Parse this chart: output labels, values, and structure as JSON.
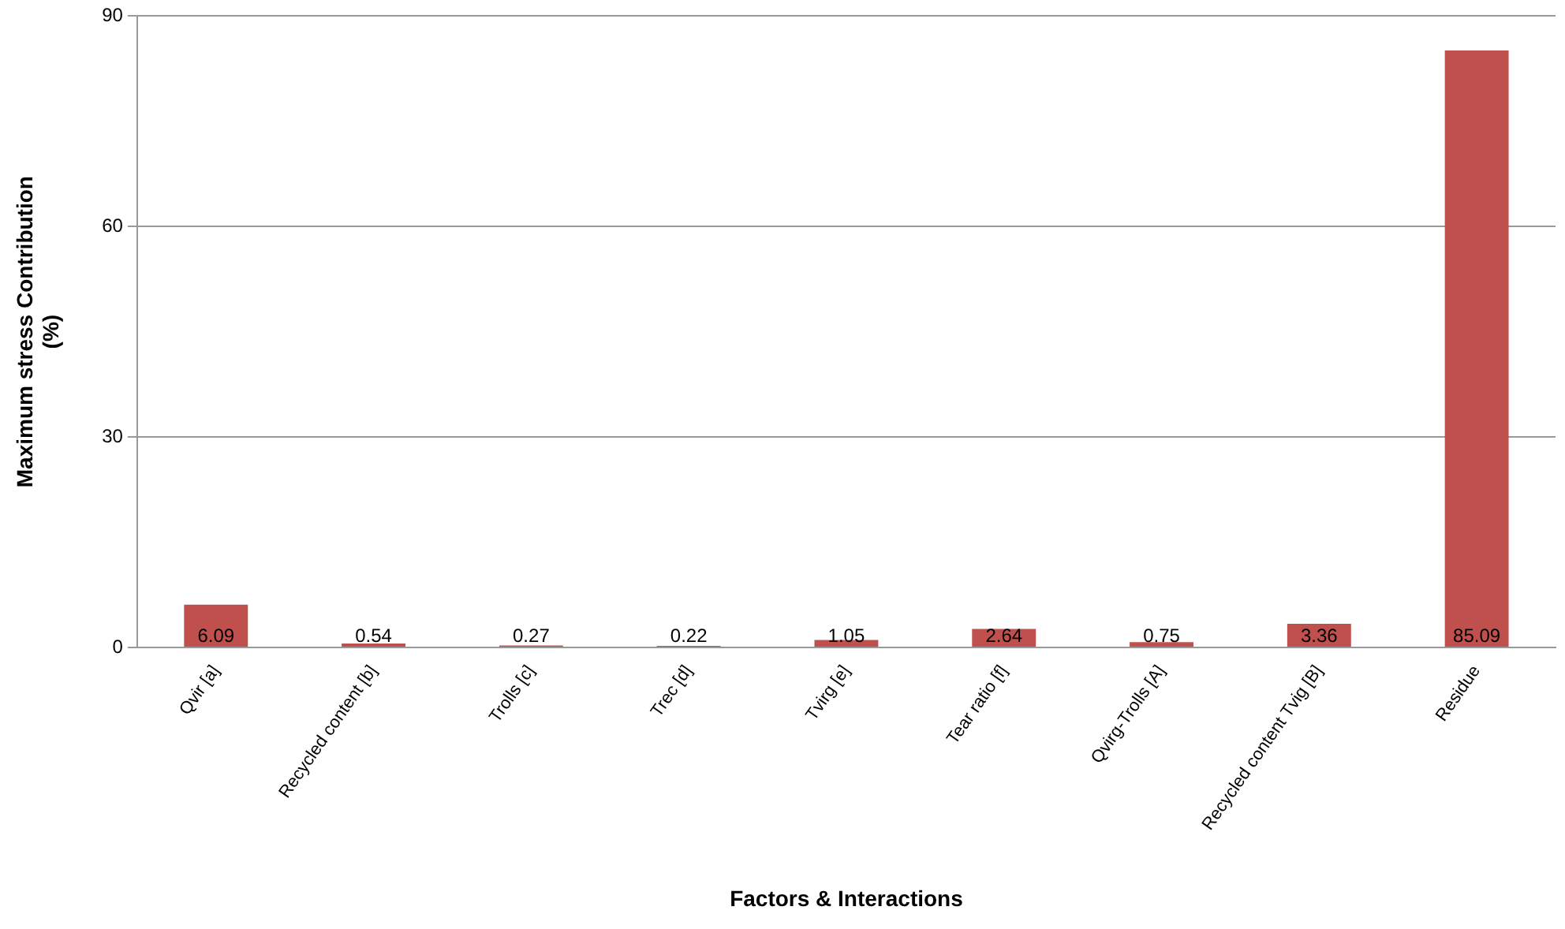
{
  "chart_data": {
    "type": "bar",
    "xlabel": "Factors & Interactions",
    "ylabel": "Maximum stress Contribution\n(%)",
    "categories": [
      "Qvir [a]",
      "Recycled content [b]",
      "Trolls [c]",
      "Trec [d]",
      "Tvirg [e]",
      "Tear ratio [f]",
      "Qvirg-Trolls [A]",
      "Recycled content Tvig [B]",
      "Residue"
    ],
    "values": [
      6.09,
      0.54,
      0.27,
      0.22,
      1.05,
      2.64,
      0.75,
      3.36,
      85.09
    ],
    "color": "#c0504d",
    "ylim": [
      0,
      90
    ],
    "yticks": [
      0,
      30,
      60,
      90
    ],
    "grid": "y",
    "legend": false,
    "data_labels": true
  }
}
